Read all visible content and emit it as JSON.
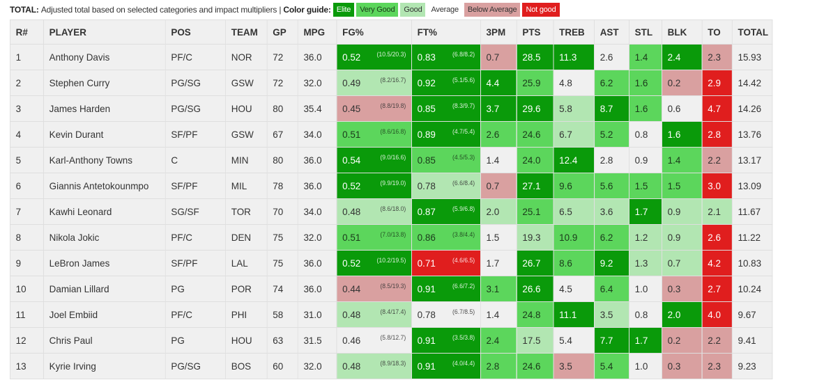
{
  "legend": {
    "title": "TOTAL:",
    "description": "Adjusted total based on selected categories and impact multipliers",
    "separator": "|",
    "guide_label": "Color guide:",
    "items": [
      {
        "label": "Elite",
        "bg": "#0a9a0a",
        "fg": "#ffffff"
      },
      {
        "label": "Very Good",
        "bg": "#5cd65c",
        "fg": "#1b3a1b"
      },
      {
        "label": "Good",
        "bg": "#b2e6b2",
        "fg": "#333333"
      },
      {
        "label": "Average",
        "bg": "#ffffff",
        "fg": "#333333"
      },
      {
        "label": "Below Average",
        "bg": "#d9a0a0",
        "fg": "#333333"
      },
      {
        "label": "Not good",
        "bg": "#e01e1e",
        "fg": "#ffffff"
      }
    ]
  },
  "columns": [
    "R#",
    "PLAYER",
    "POS",
    "TEAM",
    "GP",
    "MPG",
    "FG%",
    "FT%",
    "3PM",
    "PTS",
    "TREB",
    "AST",
    "STL",
    "BLK",
    "TO",
    "TOTAL"
  ],
  "rows": [
    {
      "rank": "1",
      "player": "Anthony Davis",
      "pos": "PF/C",
      "team": "NOR",
      "gp": "72",
      "mpg": "36.0",
      "fg": {
        "v": "0.52",
        "sub": "(10.5/20.3)",
        "c": "E"
      },
      "ft": {
        "v": "0.83",
        "sub": "(6.8/8.2)",
        "c": "E"
      },
      "tpm": {
        "v": "0.7",
        "c": "B"
      },
      "pts": {
        "v": "28.5",
        "c": "E"
      },
      "treb": {
        "v": "11.3",
        "c": "E"
      },
      "ast": {
        "v": "2.6",
        "c": "A"
      },
      "stl": {
        "v": "1.4",
        "c": "V"
      },
      "blk": {
        "v": "2.4",
        "c": "E"
      },
      "to": {
        "v": "2.3",
        "c": "B"
      },
      "total": "15.93"
    },
    {
      "rank": "2",
      "player": "Stephen Curry",
      "pos": "PG/SG",
      "team": "GSW",
      "gp": "72",
      "mpg": "32.0",
      "fg": {
        "v": "0.49",
        "sub": "(8.2/16.7)",
        "c": "G"
      },
      "ft": {
        "v": "0.92",
        "sub": "(5.1/5.6)",
        "c": "E"
      },
      "tpm": {
        "v": "4.4",
        "c": "E"
      },
      "pts": {
        "v": "25.9",
        "c": "V"
      },
      "treb": {
        "v": "4.8",
        "c": "A"
      },
      "ast": {
        "v": "6.2",
        "c": "V"
      },
      "stl": {
        "v": "1.6",
        "c": "V"
      },
      "blk": {
        "v": "0.2",
        "c": "B"
      },
      "to": {
        "v": "2.9",
        "c": "N"
      },
      "total": "14.42"
    },
    {
      "rank": "3",
      "player": "James Harden",
      "pos": "PG/SG",
      "team": "HOU",
      "gp": "80",
      "mpg": "35.4",
      "fg": {
        "v": "0.45",
        "sub": "(8.8/19.8)",
        "c": "B"
      },
      "ft": {
        "v": "0.85",
        "sub": "(8.3/9.7)",
        "c": "E"
      },
      "tpm": {
        "v": "3.7",
        "c": "E"
      },
      "pts": {
        "v": "29.6",
        "c": "E"
      },
      "treb": {
        "v": "5.8",
        "c": "G"
      },
      "ast": {
        "v": "8.7",
        "c": "E"
      },
      "stl": {
        "v": "1.6",
        "c": "V"
      },
      "blk": {
        "v": "0.6",
        "c": "A"
      },
      "to": {
        "v": "4.7",
        "c": "N"
      },
      "total": "14.26"
    },
    {
      "rank": "4",
      "player": "Kevin Durant",
      "pos": "SF/PF",
      "team": "GSW",
      "gp": "67",
      "mpg": "34.0",
      "fg": {
        "v": "0.51",
        "sub": "(8.6/16.8)",
        "c": "V"
      },
      "ft": {
        "v": "0.89",
        "sub": "(4.7/5.4)",
        "c": "E"
      },
      "tpm": {
        "v": "2.6",
        "c": "V"
      },
      "pts": {
        "v": "24.6",
        "c": "V"
      },
      "treb": {
        "v": "6.7",
        "c": "G"
      },
      "ast": {
        "v": "5.2",
        "c": "V"
      },
      "stl": {
        "v": "0.8",
        "c": "A"
      },
      "blk": {
        "v": "1.6",
        "c": "E"
      },
      "to": {
        "v": "2.8",
        "c": "N"
      },
      "total": "13.76"
    },
    {
      "rank": "5",
      "player": "Karl-Anthony Towns",
      "pos": "C",
      "team": "MIN",
      "gp": "80",
      "mpg": "36.0",
      "fg": {
        "v": "0.54",
        "sub": "(9.0/16.6)",
        "c": "E"
      },
      "ft": {
        "v": "0.85",
        "sub": "(4.5/5.3)",
        "c": "V"
      },
      "tpm": {
        "v": "1.4",
        "c": "A"
      },
      "pts": {
        "v": "24.0",
        "c": "V"
      },
      "treb": {
        "v": "12.4",
        "c": "E"
      },
      "ast": {
        "v": "2.8",
        "c": "A"
      },
      "stl": {
        "v": "0.9",
        "c": "A"
      },
      "blk": {
        "v": "1.4",
        "c": "V"
      },
      "to": {
        "v": "2.2",
        "c": "B"
      },
      "total": "13.17"
    },
    {
      "rank": "6",
      "player": "Giannis Antetokounmpo",
      "pos": "SF/PF",
      "team": "MIL",
      "gp": "78",
      "mpg": "36.0",
      "fg": {
        "v": "0.52",
        "sub": "(9.9/19.0)",
        "c": "E"
      },
      "ft": {
        "v": "0.78",
        "sub": "(6.6/8.4)",
        "c": "G"
      },
      "tpm": {
        "v": "0.7",
        "c": "B"
      },
      "pts": {
        "v": "27.1",
        "c": "E"
      },
      "treb": {
        "v": "9.6",
        "c": "V"
      },
      "ast": {
        "v": "5.6",
        "c": "V"
      },
      "stl": {
        "v": "1.5",
        "c": "V"
      },
      "blk": {
        "v": "1.5",
        "c": "V"
      },
      "to": {
        "v": "3.0",
        "c": "N"
      },
      "total": "13.09"
    },
    {
      "rank": "7",
      "player": "Kawhi Leonard",
      "pos": "SG/SF",
      "team": "TOR",
      "gp": "70",
      "mpg": "34.0",
      "fg": {
        "v": "0.48",
        "sub": "(8.6/18.0)",
        "c": "G"
      },
      "ft": {
        "v": "0.87",
        "sub": "(5.9/6.8)",
        "c": "E"
      },
      "tpm": {
        "v": "2.0",
        "c": "G"
      },
      "pts": {
        "v": "25.1",
        "c": "V"
      },
      "treb": {
        "v": "6.5",
        "c": "G"
      },
      "ast": {
        "v": "3.6",
        "c": "G"
      },
      "stl": {
        "v": "1.7",
        "c": "E"
      },
      "blk": {
        "v": "0.9",
        "c": "G"
      },
      "to": {
        "v": "2.1",
        "c": "G"
      },
      "total": "11.67"
    },
    {
      "rank": "8",
      "player": "Nikola Jokic",
      "pos": "PF/C",
      "team": "DEN",
      "gp": "75",
      "mpg": "32.0",
      "fg": {
        "v": "0.51",
        "sub": "(7.0/13.8)",
        "c": "V"
      },
      "ft": {
        "v": "0.86",
        "sub": "(3.8/4.4)",
        "c": "V"
      },
      "tpm": {
        "v": "1.5",
        "c": "A"
      },
      "pts": {
        "v": "19.3",
        "c": "G"
      },
      "treb": {
        "v": "10.9",
        "c": "V"
      },
      "ast": {
        "v": "6.2",
        "c": "V"
      },
      "stl": {
        "v": "1.2",
        "c": "G"
      },
      "blk": {
        "v": "0.9",
        "c": "G"
      },
      "to": {
        "v": "2.6",
        "c": "N"
      },
      "total": "11.22"
    },
    {
      "rank": "9",
      "player": "LeBron James",
      "pos": "SF/PF",
      "team": "LAL",
      "gp": "75",
      "mpg": "36.0",
      "fg": {
        "v": "0.52",
        "sub": "(10.2/19.5)",
        "c": "E"
      },
      "ft": {
        "v": "0.71",
        "sub": "(4.6/6.5)",
        "c": "N"
      },
      "tpm": {
        "v": "1.7",
        "c": "A"
      },
      "pts": {
        "v": "26.7",
        "c": "E"
      },
      "treb": {
        "v": "8.6",
        "c": "V"
      },
      "ast": {
        "v": "9.2",
        "c": "E"
      },
      "stl": {
        "v": "1.3",
        "c": "G"
      },
      "blk": {
        "v": "0.7",
        "c": "G"
      },
      "to": {
        "v": "4.2",
        "c": "N"
      },
      "total": "10.83"
    },
    {
      "rank": "10",
      "player": "Damian Lillard",
      "pos": "PG",
      "team": "POR",
      "gp": "74",
      "mpg": "36.0",
      "fg": {
        "v": "0.44",
        "sub": "(8.5/19.3)",
        "c": "B"
      },
      "ft": {
        "v": "0.91",
        "sub": "(6.6/7.2)",
        "c": "E"
      },
      "tpm": {
        "v": "3.1",
        "c": "V"
      },
      "pts": {
        "v": "26.6",
        "c": "E"
      },
      "treb": {
        "v": "4.5",
        "c": "A"
      },
      "ast": {
        "v": "6.4",
        "c": "V"
      },
      "stl": {
        "v": "1.0",
        "c": "A"
      },
      "blk": {
        "v": "0.3",
        "c": "B"
      },
      "to": {
        "v": "2.7",
        "c": "N"
      },
      "total": "10.24"
    },
    {
      "rank": "11",
      "player": "Joel Embiid",
      "pos": "PF/C",
      "team": "PHI",
      "gp": "58",
      "mpg": "31.0",
      "fg": {
        "v": "0.48",
        "sub": "(8.4/17.4)",
        "c": "G"
      },
      "ft": {
        "v": "0.78",
        "sub": "(6.7/8.5)",
        "c": "A"
      },
      "tpm": {
        "v": "1.4",
        "c": "A"
      },
      "pts": {
        "v": "24.8",
        "c": "V"
      },
      "treb": {
        "v": "11.1",
        "c": "E"
      },
      "ast": {
        "v": "3.5",
        "c": "G"
      },
      "stl": {
        "v": "0.8",
        "c": "A"
      },
      "blk": {
        "v": "2.0",
        "c": "E"
      },
      "to": {
        "v": "4.0",
        "c": "N"
      },
      "total": "9.67"
    },
    {
      "rank": "12",
      "player": "Chris Paul",
      "pos": "PG",
      "team": "HOU",
      "gp": "63",
      "mpg": "31.5",
      "fg": {
        "v": "0.46",
        "sub": "(5.8/12.7)",
        "c": "A"
      },
      "ft": {
        "v": "0.91",
        "sub": "(3.5/3.8)",
        "c": "E"
      },
      "tpm": {
        "v": "2.4",
        "c": "V"
      },
      "pts": {
        "v": "17.5",
        "c": "G"
      },
      "treb": {
        "v": "5.4",
        "c": "A"
      },
      "ast": {
        "v": "7.7",
        "c": "E"
      },
      "stl": {
        "v": "1.7",
        "c": "E"
      },
      "blk": {
        "v": "0.2",
        "c": "B"
      },
      "to": {
        "v": "2.2",
        "c": "B"
      },
      "total": "9.41"
    },
    {
      "rank": "13",
      "player": "Kyrie Irving",
      "pos": "PG/SG",
      "team": "BOS",
      "gp": "60",
      "mpg": "32.0",
      "fg": {
        "v": "0.48",
        "sub": "(8.9/18.3)",
        "c": "G"
      },
      "ft": {
        "v": "0.91",
        "sub": "(4.0/4.4)",
        "c": "E"
      },
      "tpm": {
        "v": "2.8",
        "c": "V"
      },
      "pts": {
        "v": "24.6",
        "c": "V"
      },
      "treb": {
        "v": "3.5",
        "c": "B"
      },
      "ast": {
        "v": "5.4",
        "c": "V"
      },
      "stl": {
        "v": "1.0",
        "c": "A"
      },
      "blk": {
        "v": "0.3",
        "c": "B"
      },
      "to": {
        "v": "2.3",
        "c": "B"
      },
      "total": "9.23"
    }
  ],
  "ratings": {
    "E": {
      "bg": "#0a9a0a",
      "fg": "#ffffff"
    },
    "V": {
      "bg": "#5cd65c",
      "fg": "#1b3a1b"
    },
    "G": {
      "bg": "#b2e6b2",
      "fg": "#333333"
    },
    "A": {
      "bg": "#f0f0f0",
      "fg": "#333333"
    },
    "B": {
      "bg": "#d9a0a0",
      "fg": "#333333"
    },
    "N": {
      "bg": "#e01e1e",
      "fg": "#ffffff"
    }
  }
}
